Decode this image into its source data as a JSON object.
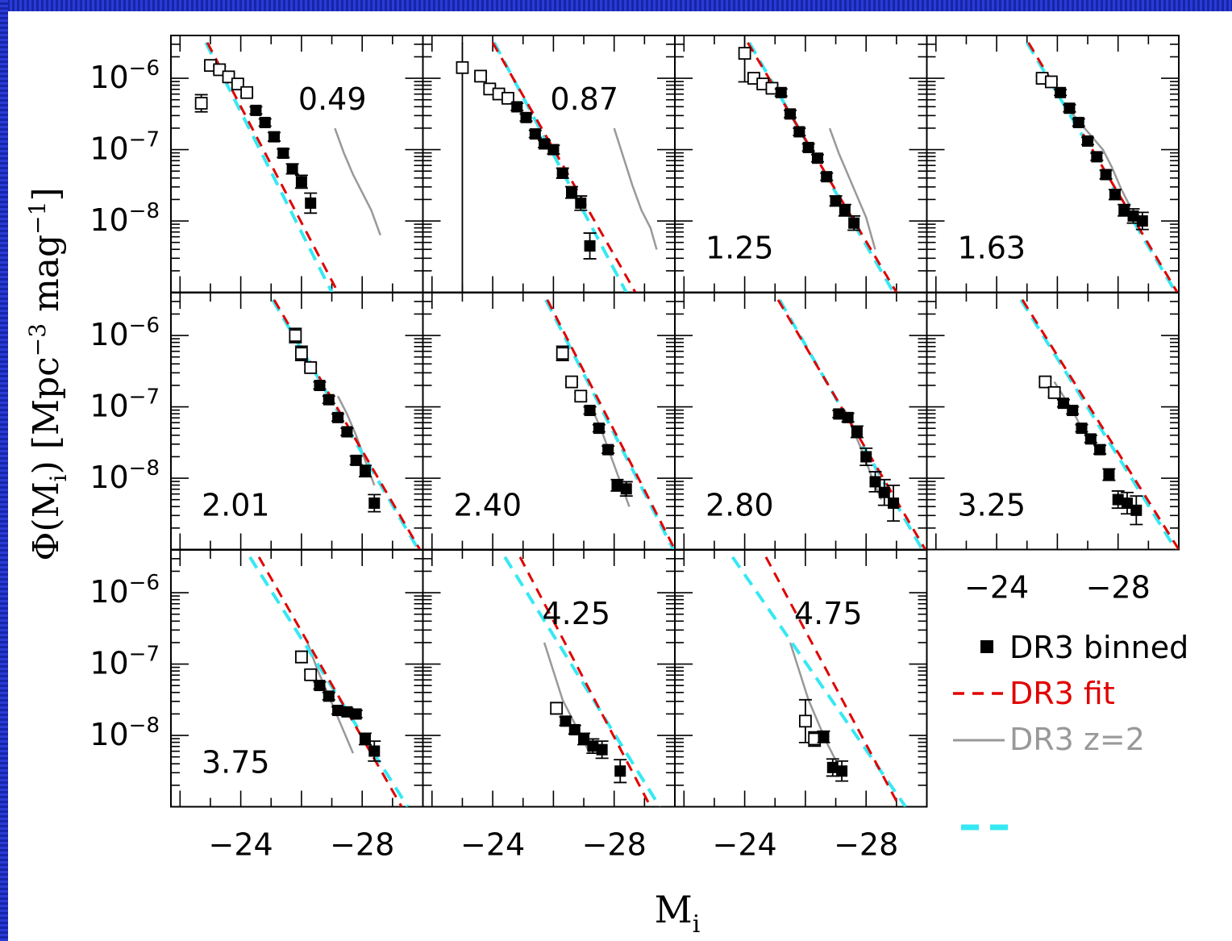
{
  "chart_data": {
    "type": "scatter",
    "title": "",
    "xlabel": "M",
    "xlabel_sub": "i",
    "ylabel_parts": [
      "Φ(M",
      "i",
      ") [Mpc",
      "−3",
      " mag",
      "−1",
      "]"
    ],
    "xlim": [
      -21.7,
      -30.0
    ],
    "ylim_log10": [
      -9.0,
      -5.4
    ],
    "x_scale": "linear, reversed",
    "y_scale": "log",
    "grid": false,
    "x_tick_labels": [
      {
        "value": -24,
        "label": "−24"
      },
      {
        "value": -28,
        "label": "−28"
      }
    ],
    "y_tick_labels": [
      {
        "exp": -6,
        "base": "10",
        "sup": "−6"
      },
      {
        "exp": -7,
        "base": "10",
        "sup": "−7"
      },
      {
        "exp": -8,
        "base": "10",
        "sup": "−8"
      }
    ],
    "legend": {
      "placement": "bottom-right",
      "entries": [
        {
          "label": "DR3 binned",
          "color": "#000000",
          "style": "square"
        },
        {
          "label": "DR3 fit",
          "color": "#e00000",
          "style": "dashed"
        },
        {
          "label": "DR3 z=2",
          "color": "#999999",
          "style": "solid"
        },
        {
          "label": "",
          "color": "#36e8f2",
          "style": "dashed"
        }
      ]
    },
    "colors": {
      "fit": "#e00000",
      "model": "#36e8f2",
      "z2": "#999999",
      "points": "#000000"
    },
    "panels": [
      {
        "redshift": "0.49",
        "label_pos": "top-right",
        "open_points": [
          [
            -22.7,
            -6.35,
            0.12
          ],
          [
            -23.0,
            -5.82,
            0.05
          ],
          [
            -23.3,
            -5.88,
            0.05
          ],
          [
            -23.6,
            -5.98,
            0.05
          ],
          [
            -23.9,
            -6.08,
            0.05
          ],
          [
            -24.2,
            -6.2,
            0.05
          ]
        ],
        "filled_points": [
          [
            -24.5,
            -6.45,
            0.05
          ],
          [
            -24.8,
            -6.62,
            0.05
          ],
          [
            -25.1,
            -6.82,
            0.06
          ],
          [
            -25.4,
            -7.05,
            0.06
          ],
          [
            -25.7,
            -7.27,
            0.07
          ],
          [
            -26.0,
            -7.45,
            0.09
          ],
          [
            -26.3,
            -7.75,
            0.14
          ]
        ],
        "fit": [
          [
            -22.9,
            -5.5
          ],
          [
            -27.2,
            -9.0
          ]
        ],
        "model": [
          [
            -22.85,
            -5.5
          ],
          [
            -27.0,
            -9.0
          ]
        ],
        "z2": [
          [
            -27.1,
            -6.7
          ],
          [
            -27.4,
            -7.05
          ],
          [
            -27.7,
            -7.35
          ],
          [
            -28.0,
            -7.6
          ],
          [
            -28.3,
            -7.85
          ],
          [
            -28.6,
            -8.2
          ]
        ]
      },
      {
        "redshift": "0.87",
        "label_pos": "top-right",
        "open_points": [
          [
            -23.6,
            -5.97,
            0.05
          ],
          [
            -23.9,
            -6.15,
            0.05
          ],
          [
            -24.2,
            -6.22,
            0.05
          ],
          [
            -24.5,
            -6.28,
            0.05
          ]
        ],
        "open_points_big_err": [
          [
            -23.0,
            -5.85,
            -9.0,
            -5.5
          ]
        ],
        "filled_points": [
          [
            -24.8,
            -6.4,
            0.05
          ],
          [
            -25.1,
            -6.55,
            0.05
          ],
          [
            -25.4,
            -6.78,
            0.05
          ],
          [
            -25.7,
            -6.92,
            0.05
          ],
          [
            -26.0,
            -7.0,
            0.06
          ],
          [
            -26.3,
            -7.33,
            0.07
          ],
          [
            -26.6,
            -7.6,
            0.08
          ],
          [
            -26.9,
            -7.75,
            0.1
          ],
          [
            -27.2,
            -8.35,
            0.18
          ]
        ],
        "fit": [
          [
            -24.0,
            -5.5
          ],
          [
            -28.7,
            -9.0
          ]
        ],
        "model": [
          [
            -24.05,
            -5.5
          ],
          [
            -28.4,
            -9.0
          ]
        ],
        "z2": [
          [
            -28.0,
            -6.7
          ],
          [
            -28.3,
            -7.1
          ],
          [
            -28.6,
            -7.5
          ],
          [
            -28.9,
            -7.85
          ],
          [
            -29.2,
            -8.1
          ],
          [
            -29.4,
            -8.4
          ]
        ]
      },
      {
        "redshift": "1.25",
        "label_pos": "bottom-left",
        "open_points": [
          [
            -24.0,
            -5.65,
            0.4
          ],
          [
            -24.3,
            -6.0,
            0.05
          ],
          [
            -24.6,
            -6.08,
            0.05
          ],
          [
            -24.9,
            -6.14,
            0.05
          ]
        ],
        "filled_points": [
          [
            -25.2,
            -6.2,
            0.05
          ],
          [
            -25.5,
            -6.5,
            0.05
          ],
          [
            -25.8,
            -6.75,
            0.05
          ],
          [
            -26.1,
            -6.97,
            0.05
          ],
          [
            -26.4,
            -7.12,
            0.05
          ],
          [
            -26.7,
            -7.38,
            0.05
          ],
          [
            -27.0,
            -7.72,
            0.07
          ],
          [
            -27.3,
            -7.85,
            0.08
          ],
          [
            -27.6,
            -8.03,
            0.1
          ]
        ],
        "fit": [
          [
            -24.1,
            -5.5
          ],
          [
            -29.0,
            -9.0
          ]
        ],
        "model": [
          [
            -24.15,
            -5.5
          ],
          [
            -28.9,
            -9.0
          ]
        ],
        "z2": [
          [
            -26.8,
            -6.7
          ],
          [
            -27.1,
            -7.05
          ],
          [
            -27.4,
            -7.35
          ],
          [
            -27.7,
            -7.65
          ],
          [
            -28.0,
            -7.95
          ],
          [
            -28.3,
            -8.4
          ]
        ]
      },
      {
        "redshift": "1.63",
        "label_pos": "bottom-left",
        "open_points": [
          [
            -25.5,
            -6.0,
            0.04
          ],
          [
            -25.8,
            -6.05,
            0.04
          ]
        ],
        "filled_points": [
          [
            -26.1,
            -6.2,
            0.04
          ],
          [
            -26.4,
            -6.42,
            0.05
          ],
          [
            -26.7,
            -6.62,
            0.05
          ],
          [
            -27.0,
            -6.88,
            0.05
          ],
          [
            -27.3,
            -7.1,
            0.05
          ],
          [
            -27.6,
            -7.35,
            0.06
          ],
          [
            -27.9,
            -7.63,
            0.07
          ],
          [
            -28.2,
            -7.85,
            0.08
          ],
          [
            -28.5,
            -7.93,
            0.1
          ],
          [
            -28.8,
            -8.0,
            0.12
          ]
        ],
        "fit": [
          [
            -25.05,
            -5.5
          ],
          [
            -29.95,
            -9.0
          ]
        ],
        "model": [
          [
            -25.0,
            -5.5
          ],
          [
            -29.9,
            -9.0
          ]
        ],
        "z2": [
          [
            -26.3,
            -6.4
          ],
          [
            -26.6,
            -6.55
          ],
          [
            -26.9,
            -6.7
          ],
          [
            -27.2,
            -6.85
          ],
          [
            -27.5,
            -7.0
          ],
          [
            -27.8,
            -7.25
          ],
          [
            -28.1,
            -7.55
          ],
          [
            -28.4,
            -7.8
          ]
        ]
      },
      {
        "redshift": "2.01",
        "label_pos": "bottom-left",
        "open_points": [
          [
            -25.8,
            -6.0,
            0.1
          ],
          [
            -26.0,
            -6.25,
            0.1
          ],
          [
            -26.3,
            -6.45,
            0.05
          ]
        ],
        "filled_points": [
          [
            -26.6,
            -6.7,
            0.05
          ],
          [
            -26.9,
            -6.9,
            0.05
          ],
          [
            -27.2,
            -7.15,
            0.05
          ],
          [
            -27.5,
            -7.35,
            0.05
          ],
          [
            -27.8,
            -7.75,
            0.06
          ],
          [
            -28.1,
            -7.9,
            0.08
          ],
          [
            -28.4,
            -8.35,
            0.12
          ]
        ],
        "fit": [
          [
            -25.1,
            -5.5
          ],
          [
            -29.9,
            -9.0
          ]
        ],
        "model": [
          [
            -25.05,
            -5.5
          ],
          [
            -29.85,
            -9.0
          ]
        ],
        "z2": [
          [
            -27.2,
            -6.85
          ],
          [
            -27.5,
            -7.1
          ],
          [
            -27.8,
            -7.4
          ],
          [
            -28.1,
            -7.75
          ],
          [
            -28.4,
            -8.1
          ]
        ]
      },
      {
        "redshift": "2.40",
        "label_pos": "bottom-left",
        "open_points": [
          [
            -26.3,
            -6.25,
            0.1
          ],
          [
            -26.6,
            -6.65,
            0.05
          ],
          [
            -26.9,
            -6.85,
            0.05
          ]
        ],
        "filled_points": [
          [
            -27.2,
            -7.05,
            0.05
          ],
          [
            -27.5,
            -7.3,
            0.05
          ],
          [
            -27.8,
            -7.6,
            0.05
          ],
          [
            -28.1,
            -8.1,
            0.08
          ],
          [
            -28.4,
            -8.15,
            0.1
          ]
        ],
        "fit": [
          [
            -25.8,
            -5.5
          ],
          [
            -30.0,
            -9.0
          ]
        ],
        "model": [
          [
            -25.75,
            -5.5
          ],
          [
            -29.95,
            -9.0
          ]
        ],
        "z2": [
          [
            -27.3,
            -7.05
          ],
          [
            -27.6,
            -7.35
          ],
          [
            -27.9,
            -7.7
          ],
          [
            -28.2,
            -8.05
          ],
          [
            -28.5,
            -8.4
          ]
        ]
      },
      {
        "redshift": "2.80",
        "label_pos": "bottom-left",
        "open_points": [],
        "filled_points": [
          [
            -27.1,
            -7.1,
            0.05
          ],
          [
            -27.4,
            -7.15,
            0.06
          ],
          [
            -27.7,
            -7.35,
            0.08
          ],
          [
            -28.0,
            -7.7,
            0.12
          ],
          [
            -28.3,
            -8.05,
            0.14
          ],
          [
            -28.6,
            -8.2,
            0.18
          ],
          [
            -28.9,
            -8.35,
            0.25
          ]
        ],
        "fit": [
          [
            -25.1,
            -5.5
          ],
          [
            -29.95,
            -9.0
          ]
        ],
        "model": [
          [
            -25.15,
            -5.5
          ],
          [
            -29.85,
            -9.0
          ]
        ],
        "z2": [
          [
            -27.3,
            -7.05
          ],
          [
            -27.6,
            -7.35
          ],
          [
            -27.9,
            -7.65
          ],
          [
            -28.2,
            -8.0
          ],
          [
            -28.5,
            -8.3
          ]
        ]
      },
      {
        "redshift": "3.25",
        "label_pos": "bottom-left",
        "open_points": [
          [
            -25.6,
            -6.65,
            0.06
          ],
          [
            -25.9,
            -6.8,
            0.06
          ]
        ],
        "filled_points": [
          [
            -26.2,
            -6.95,
            0.05
          ],
          [
            -26.5,
            -7.05,
            0.05
          ],
          [
            -26.8,
            -7.3,
            0.05
          ],
          [
            -27.1,
            -7.45,
            0.05
          ],
          [
            -27.4,
            -7.6,
            0.06
          ],
          [
            -27.7,
            -7.95,
            0.08
          ],
          [
            -28.0,
            -8.3,
            0.12
          ],
          [
            -28.3,
            -8.35,
            0.15
          ],
          [
            -28.6,
            -8.45,
            0.2
          ]
        ],
        "fit": [
          [
            -24.85,
            -5.5
          ],
          [
            -30.0,
            -9.0
          ]
        ],
        "model": [
          [
            -24.8,
            -5.5
          ],
          [
            -29.9,
            -9.0
          ]
        ],
        "z2": [
          [
            -25.9,
            -6.65
          ],
          [
            -26.2,
            -6.85
          ],
          [
            -26.5,
            -7.05
          ],
          [
            -26.8,
            -7.3
          ],
          [
            -27.1,
            -7.5
          ]
        ]
      },
      {
        "redshift": "3.75",
        "label_pos": "bottom-left",
        "open_points": [
          [
            -26.0,
            -6.9,
            0.08
          ],
          [
            -26.3,
            -7.15,
            0.06
          ]
        ],
        "filled_points": [
          [
            -26.6,
            -7.3,
            0.05
          ],
          [
            -26.9,
            -7.45,
            0.05
          ],
          [
            -27.2,
            -7.65,
            0.05
          ],
          [
            -27.5,
            -7.67,
            0.05
          ],
          [
            -27.8,
            -7.7,
            0.05
          ],
          [
            -28.1,
            -8.05,
            0.08
          ],
          [
            -28.4,
            -8.22,
            0.14
          ]
        ],
        "fit": [
          [
            -24.6,
            -5.5
          ],
          [
            -29.3,
            -9.0
          ]
        ],
        "model": [
          [
            -24.3,
            -5.5
          ],
          [
            -29.5,
            -9.0
          ]
        ],
        "z2": [
          [
            -26.2,
            -6.7
          ],
          [
            -26.5,
            -7.05
          ],
          [
            -26.8,
            -7.35
          ],
          [
            -27.1,
            -7.65
          ],
          [
            -27.4,
            -7.95
          ],
          [
            -27.7,
            -8.25
          ]
        ]
      },
      {
        "redshift": "4.25",
        "label_pos": "top-left",
        "open_points": [
          [
            -26.1,
            -7.62,
            0.08
          ]
        ],
        "filled_points": [
          [
            -26.4,
            -7.8,
            0.06
          ],
          [
            -26.7,
            -7.92,
            0.06
          ],
          [
            -27.0,
            -8.05,
            0.08
          ],
          [
            -27.3,
            -8.15,
            0.1
          ],
          [
            -27.6,
            -8.2,
            0.12
          ],
          [
            -28.2,
            -8.5,
            0.16
          ]
        ],
        "fit": [
          [
            -24.9,
            -5.5
          ],
          [
            -29.2,
            -9.0
          ]
        ],
        "model": [
          [
            -24.4,
            -5.5
          ],
          [
            -29.5,
            -9.0
          ]
        ],
        "z2": [
          [
            -25.7,
            -6.7
          ],
          [
            -26.0,
            -7.1
          ],
          [
            -26.3,
            -7.5
          ],
          [
            -26.6,
            -7.75
          ],
          [
            -26.9,
            -8.0
          ],
          [
            -27.2,
            -8.25
          ]
        ]
      },
      {
        "redshift": "4.75",
        "label_pos": "top-left",
        "open_points": [
          [
            -26.0,
            -7.8,
            0.3
          ],
          [
            -26.3,
            -8.05,
            0.1
          ]
        ],
        "filled_points": [
          [
            -26.6,
            -8.02,
            0.08
          ],
          [
            -26.9,
            -8.45,
            0.12
          ],
          [
            -27.2,
            -8.5,
            0.14
          ]
        ],
        "fit": [
          [
            -24.7,
            -5.5
          ],
          [
            -29.1,
            -9.0
          ]
        ],
        "model": [
          [
            -23.6,
            -5.5
          ],
          [
            -29.3,
            -9.0
          ]
        ],
        "z2": [
          [
            -25.5,
            -6.7
          ],
          [
            -25.8,
            -7.1
          ],
          [
            -26.1,
            -7.5
          ],
          [
            -26.4,
            -7.8
          ],
          [
            -26.7,
            -8.1
          ],
          [
            -27.0,
            -8.35
          ]
        ]
      }
    ]
  }
}
